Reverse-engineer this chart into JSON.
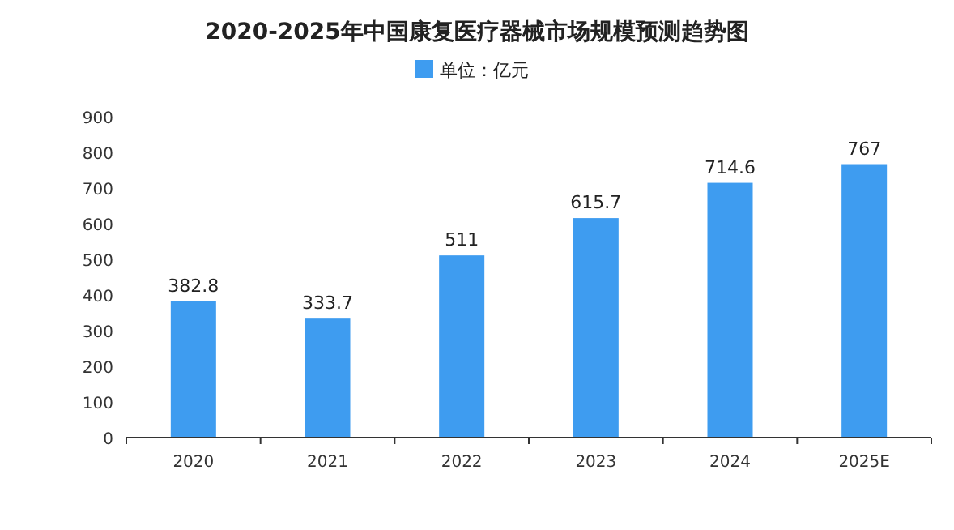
{
  "chart_data": {
    "type": "bar",
    "title": "2020-2025年中国康复医疗器械市场规模预测趋势图",
    "categories": [
      "2020",
      "2021",
      "2022",
      "2023",
      "2024",
      "2025E"
    ],
    "series": [
      {
        "name": "单位：亿元",
        "color": "#3e9cf0",
        "values": [
          382.8,
          333.7,
          511,
          615.7,
          714.6,
          767
        ]
      }
    ],
    "ylim": [
      0,
      900
    ],
    "yticks": [
      0,
      100,
      200,
      300,
      400,
      500,
      600,
      700,
      800,
      900
    ],
    "data_labels": true,
    "legend": "top"
  }
}
